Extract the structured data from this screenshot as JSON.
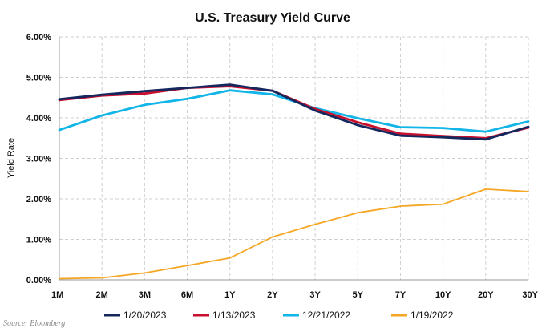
{
  "chart_data": {
    "type": "line",
    "title": "U.S. Treasury Yield Curve",
    "xlabel": "",
    "ylabel": "Yield Rate",
    "categories": [
      "1M",
      "2M",
      "3M",
      "6M",
      "1Y",
      "2Y",
      "3Y",
      "5Y",
      "7Y",
      "10Y",
      "20Y",
      "30Y"
    ],
    "ylim": [
      0,
      6
    ],
    "yticks": [
      "0.00%",
      "1.00%",
      "2.00%",
      "3.00%",
      "4.00%",
      "5.00%",
      "6.00%"
    ],
    "ytick_values": [
      0,
      1,
      2,
      3,
      4,
      5,
      6
    ],
    "grid": true,
    "legend_position": "bottom",
    "series": [
      {
        "name": "1/20/2023",
        "color": "#14285e",
        "values": [
          4.46,
          4.57,
          4.66,
          4.74,
          4.82,
          4.67,
          4.18,
          3.82,
          3.56,
          3.52,
          3.47,
          3.78
        ]
      },
      {
        "name": "1/13/2023",
        "color": "#c8102e",
        "values": [
          4.44,
          4.55,
          4.6,
          4.74,
          4.78,
          4.67,
          4.22,
          3.89,
          3.61,
          3.55,
          3.5,
          3.76
        ]
      },
      {
        "name": "12/21/2022",
        "color": "#12b5e8",
        "values": [
          3.7,
          4.06,
          4.32,
          4.47,
          4.68,
          4.58,
          4.24,
          3.99,
          3.77,
          3.75,
          3.66,
          3.91
        ]
      },
      {
        "name": "1/19/2022",
        "color": "#f5a623",
        "values": [
          0.03,
          0.05,
          0.17,
          0.35,
          0.54,
          1.06,
          1.37,
          1.66,
          1.82,
          1.87,
          2.24,
          2.18
        ]
      }
    ]
  },
  "source_note": "Source: Bloomberg"
}
